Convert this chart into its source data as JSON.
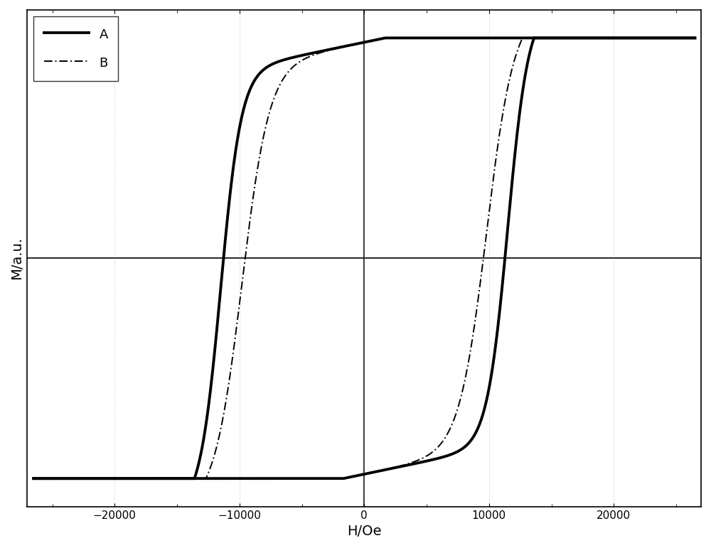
{
  "title": "",
  "xlabel": "H/Oe",
  "ylabel": "M/a.u.",
  "xlim": [
    -27000,
    27000
  ],
  "ylim": [
    -1.15,
    1.15
  ],
  "xticks": [
    -20000,
    -10000,
    0,
    10000,
    20000
  ],
  "background_color": "#ffffff",
  "line_color_A": "#000000",
  "line_color_B": "#000000",
  "linewidth_A": 2.8,
  "linewidth_B": 1.4,
  "coercivity_A": 11500,
  "coercivity_B": 9800,
  "saturation": 1.0,
  "slope_param": 1.2e-05,
  "sharpness_A": 7.0,
  "sharpness_B": 4.5,
  "remanence_A": 0.88,
  "remanence_B": 0.75,
  "legend_labels": [
    "A",
    "B"
  ]
}
